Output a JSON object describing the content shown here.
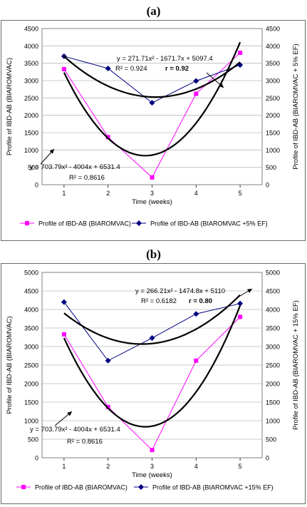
{
  "chart_data": [
    {
      "type": "line",
      "panel_label": "(a)",
      "x": [
        1,
        2,
        3,
        4,
        5
      ],
      "xlabel": "Time (weeks)",
      "ylabel_left": "Profile of IBD-AB (BIAROMVAC)",
      "ylabel_right": "Profile of IBD-AB (BIAROMVAC + 5% EF)",
      "ylim": [
        0,
        4500
      ],
      "yticks": [
        0,
        500,
        1000,
        1500,
        2000,
        2500,
        3000,
        3500,
        4000,
        4500
      ],
      "grid": true,
      "legend_position": "bottom",
      "series": [
        {
          "name": "Profile of IBD-AB (BIAROMVAC)",
          "color": "#ff00ff",
          "marker": "square",
          "values": [
            3330,
            1370,
            210,
            2620,
            3800
          ]
        },
        {
          "name": "Profile of IBD-AB (BIAROMVAC +5% EF)",
          "color": "#00007f",
          "marker": "diamond",
          "values": [
            3700,
            3350,
            2360,
            2990,
            3450
          ]
        }
      ],
      "trendlines": [
        {
          "target": "Profile of IBD-AB (BIAROMVAC)",
          "coefficients": [
            703.79,
            -4004,
            6531.4
          ],
          "equation": "y = 703.79x² - 4004x + 6531.4",
          "r2_text": "R² = 0.8616"
        },
        {
          "target": "Profile of IBD-AB (BIAROMVAC +5% EF)",
          "coefficients": [
            271.71,
            -1671.7,
            5097.4
          ],
          "equation": "y = 271.71x² - 1671.7x + 5097.4",
          "r2_text": "R² = 0.924",
          "r_text": "r = 0.92"
        }
      ]
    },
    {
      "type": "line",
      "panel_label": "(b)",
      "x": [
        1,
        2,
        3,
        4,
        5
      ],
      "xlabel": "Time (weeks)",
      "ylabel_left": "Profile of IBD-AB (BIAROMVAC)",
      "ylabel_right": "Profile of IBD-AB (BIAROMVAC + 15% EF)",
      "ylim": [
        0,
        5000
      ],
      "yticks": [
        0,
        500,
        1000,
        1500,
        2000,
        2500,
        3000,
        3500,
        4000,
        4500,
        5000
      ],
      "grid": true,
      "legend_position": "bottom",
      "series": [
        {
          "name": "Profile of IBD-AB (BIAROMVAC)",
          "color": "#ff00ff",
          "marker": "square",
          "values": [
            3330,
            1370,
            210,
            2620,
            3800
          ]
        },
        {
          "name": "Profile of IBD-AB (BIAROMVAC +15% EF)",
          "color": "#00007f",
          "marker": "diamond",
          "values": [
            4200,
            2620,
            3230,
            3880,
            4160
          ]
        }
      ],
      "trendlines": [
        {
          "target": "Profile of IBD-AB (BIAROMVAC)",
          "coefficients": [
            703.79,
            -4004,
            6531.4
          ],
          "equation": "y = 703.79x² - 4004x + 6531.4",
          "r2_text": "R² = 0.8616"
        },
        {
          "target": "Profile of IBD-AB (BIAROMVAC +15% EF)",
          "coefficients": [
            266.21,
            -1474.8,
            5110
          ],
          "equation": "y = 266.21x² - 1474.8x + 5110",
          "r2_text": "R² = 0.6182",
          "r_text": "r = 0.80"
        }
      ]
    }
  ]
}
